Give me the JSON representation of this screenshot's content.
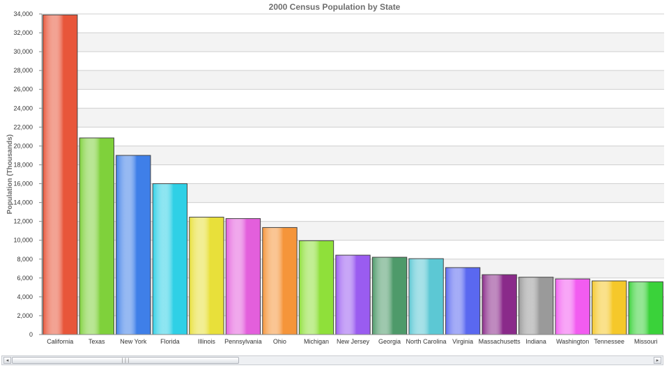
{
  "chart_data": {
    "type": "bar",
    "title": "2000 Census Population by State",
    "xlabel": "",
    "ylabel": "Population (Thousands)",
    "ylim": [
      0,
      34000
    ],
    "ytick_step": 2000,
    "ytick_labels": [
      "0",
      "2,000",
      "4,000",
      "6,000",
      "8,000",
      "10,000",
      "12,000",
      "14,000",
      "16,000",
      "18,000",
      "20,000",
      "22,000",
      "24,000",
      "26,000",
      "28,000",
      "30,000",
      "32,000",
      "34,000"
    ],
    "grid": true,
    "categories": [
      "California",
      "Texas",
      "New York",
      "Florida",
      "Illinois",
      "Pennsylvania",
      "Ohio",
      "Michigan",
      "New Jersey",
      "Georgia",
      "North Carolina",
      "Virginia",
      "Massachusetts",
      "Indiana",
      "Washington",
      "Tennessee",
      "Missouri"
    ],
    "values": [
      33900,
      20850,
      19000,
      16000,
      12450,
      12300,
      11350,
      9950,
      8420,
      8200,
      8050,
      7100,
      6350,
      6080,
      5900,
      5690,
      5600
    ],
    "bar_colors": [
      "#e8563a",
      "#7fd13b",
      "#3f7fe8",
      "#2fd0e6",
      "#e8e03a",
      "#e35fdc",
      "#f5953a",
      "#8fe03a",
      "#9a5cf0",
      "#4e9a6a",
      "#5cc8d4",
      "#5a68f0",
      "#8a2a8a",
      "#9a9a9a",
      "#f25cf0",
      "#f5c82a",
      "#3ad23a"
    ]
  },
  "scrollbar": {
    "left_arrow": "◂",
    "right_arrow": "▸",
    "grip": "|||"
  }
}
